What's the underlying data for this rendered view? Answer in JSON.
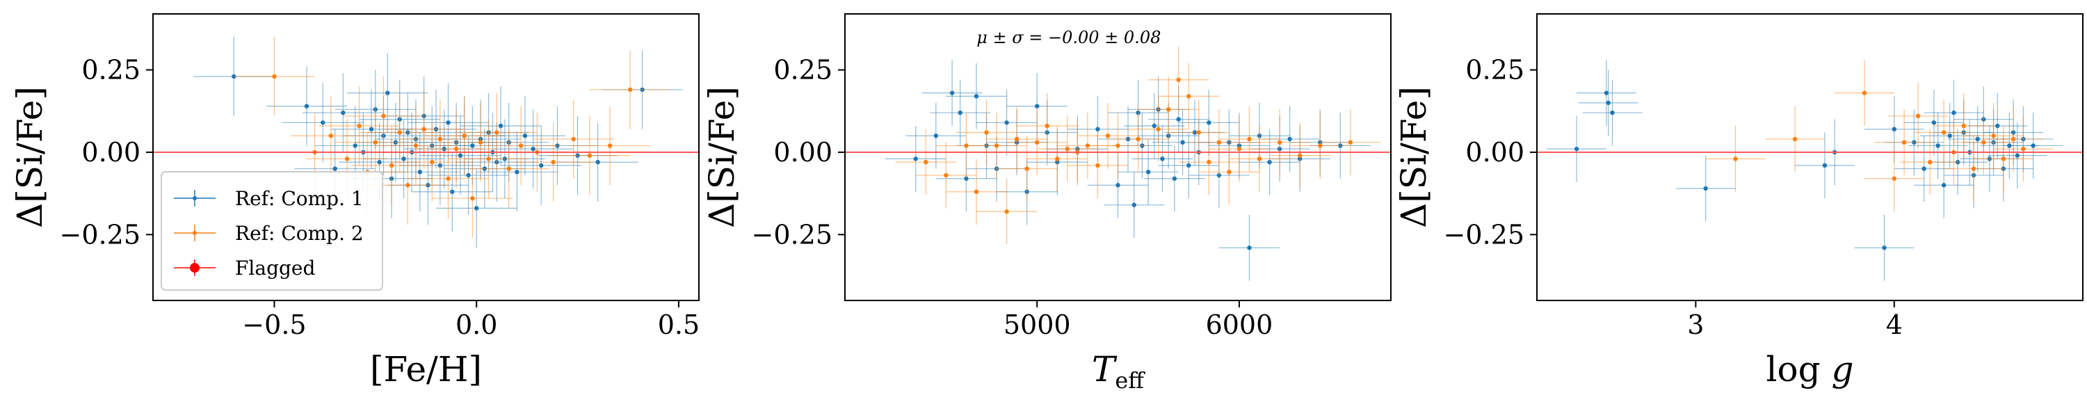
{
  "chart_data": [
    {
      "type": "scatter",
      "xlabel": "[Fe/H]",
      "ylabel": "Δ[Si/Fe]",
      "xlim": [
        -0.8,
        0.55
      ],
      "ylim": [
        -0.45,
        0.42
      ],
      "xticks": [
        -0.5,
        0.0,
        0.5
      ],
      "xtick_labels": [
        "−0.5",
        "0.0",
        "0.5"
      ],
      "yticks": [
        -0.25,
        0.0,
        0.25
      ],
      "ytick_labels": [
        "−0.25",
        "0.00",
        "0.25"
      ],
      "reference_line": 0.0,
      "legend": {
        "placement": "bottom-left",
        "entries": [
          "Ref: Comp. 1",
          "Ref: Comp. 2",
          "Flagged"
        ]
      },
      "series": [
        {
          "name": "Ref: Comp. 1",
          "color": "#1f77b4",
          "x": [
            -0.6,
            -0.42,
            -0.38,
            -0.35,
            -0.33,
            -0.3,
            -0.28,
            -0.26,
            -0.25,
            -0.24,
            -0.23,
            -0.22,
            -0.21,
            -0.2,
            -0.19,
            -0.18,
            -0.17,
            -0.16,
            -0.15,
            -0.14,
            -0.13,
            -0.12,
            -0.11,
            -0.1,
            -0.09,
            -0.08,
            -0.07,
            -0.06,
            -0.05,
            -0.04,
            -0.03,
            -0.02,
            -0.01,
            0.0,
            0.01,
            0.02,
            0.03,
            0.04,
            0.05,
            0.06,
            0.07,
            0.08,
            0.1,
            0.12,
            0.14,
            0.16,
            0.2,
            0.25,
            0.3,
            0.41
          ],
          "y": [
            0.23,
            0.14,
            0.09,
            -0.05,
            0.12,
            0.02,
            0.0,
            0.07,
            0.13,
            -0.03,
            0.05,
            0.18,
            -0.08,
            0.03,
            0.1,
            -0.02,
            0.06,
            0.0,
            0.04,
            -0.06,
            0.11,
            -0.1,
            0.02,
            0.07,
            -0.04,
            0.01,
            0.09,
            -0.12,
            0.03,
            -0.01,
            0.05,
            -0.07,
            0.02,
            -0.17,
            0.04,
            -0.05,
            0.06,
            0.0,
            -0.03,
            0.08,
            -0.02,
            0.03,
            -0.06,
            0.05,
            0.01,
            -0.04,
            0.02,
            -0.01,
            -0.03,
            0.19
          ],
          "xerr": 0.1,
          "yerr": 0.12
        },
        {
          "name": "Ref: Comp. 2",
          "color": "#ff7f0e",
          "x": [
            -0.5,
            -0.4,
            -0.36,
            -0.32,
            -0.29,
            -0.27,
            -0.25,
            -0.23,
            -0.21,
            -0.19,
            -0.17,
            -0.15,
            -0.13,
            -0.11,
            -0.09,
            -0.07,
            -0.05,
            -0.03,
            -0.01,
            0.01,
            0.03,
            0.05,
            0.08,
            0.11,
            0.15,
            0.19,
            0.24,
            0.28,
            0.33,
            0.38
          ],
          "y": [
            0.23,
            0.0,
            0.05,
            -0.02,
            0.08,
            -0.06,
            0.03,
            0.11,
            -0.04,
            0.06,
            -0.1,
            0.02,
            0.07,
            -0.03,
            0.04,
            -0.08,
            0.01,
            0.05,
            -0.14,
            0.03,
            -0.02,
            0.06,
            -0.05,
            0.02,
            0.0,
            -0.03,
            0.04,
            -0.01,
            0.02,
            0.19
          ],
          "xerr": 0.1,
          "yerr": 0.12
        }
      ]
    },
    {
      "type": "scatter",
      "xlabel": "T_eff",
      "ylabel": "Δ[Si/Fe]",
      "annotation": "μ ± σ = −0.00 ± 0.08",
      "xlim": [
        4050,
        6750
      ],
      "ylim": [
        -0.45,
        0.42
      ],
      "xticks": [
        5000,
        6000
      ],
      "xtick_labels": [
        "5000",
        "6000"
      ],
      "yticks": [
        -0.25,
        0.0,
        0.25
      ],
      "ytick_labels": [
        "−0.25",
        "0.00",
        "0.25"
      ],
      "reference_line": 0.0,
      "series": [
        {
          "name": "Ref: Comp. 1",
          "color": "#1f77b4",
          "x": [
            4400,
            4500,
            4580,
            4620,
            4650,
            4700,
            4750,
            4800,
            4850,
            4900,
            4950,
            5000,
            5050,
            5100,
            5200,
            5300,
            5400,
            5450,
            5480,
            5500,
            5520,
            5550,
            5580,
            5600,
            5620,
            5650,
            5680,
            5700,
            5720,
            5750,
            5780,
            5800,
            5850,
            5900,
            5950,
            6000,
            6050,
            6100,
            6150,
            6200,
            6250,
            6300,
            6400,
            6500
          ],
          "y": [
            -0.02,
            0.05,
            0.18,
            0.12,
            -0.08,
            0.17,
            0.02,
            -0.05,
            0.09,
            0.03,
            -0.12,
            0.14,
            0.06,
            -0.03,
            0.01,
            0.07,
            -0.1,
            0.04,
            -0.16,
            0.12,
            0.02,
            -0.06,
            0.08,
            0.13,
            -0.02,
            0.05,
            -0.08,
            0.1,
            0.03,
            -0.04,
            0.06,
            0.0,
            0.09,
            -0.07,
            0.03,
            0.02,
            -0.29,
            0.05,
            -0.03,
            0.01,
            0.04,
            -0.02,
            0.03,
            0.02
          ],
          "xerr": 150,
          "yerr": 0.1
        },
        {
          "name": "Ref: Comp. 2",
          "color": "#ff7f0e",
          "x": [
            4450,
            4550,
            4650,
            4700,
            4750,
            4800,
            4850,
            4900,
            4950,
            5000,
            5050,
            5100,
            5150,
            5200,
            5250,
            5300,
            5350,
            5400,
            5500,
            5600,
            5650,
            5700,
            5750,
            5800,
            5850,
            5900,
            5950,
            6000,
            6050,
            6100,
            6200,
            6300,
            6400,
            6550
          ],
          "y": [
            -0.03,
            -0.07,
            0.02,
            -0.12,
            0.06,
            0.02,
            -0.18,
            0.04,
            -0.05,
            0.03,
            0.08,
            -0.02,
            0.01,
            0.0,
            0.02,
            -0.04,
            0.05,
            0.02,
            0.04,
            0.07,
            0.13,
            0.22,
            0.17,
            0.06,
            -0.03,
            0.03,
            -0.06,
            0.01,
            0.04,
            -0.02,
            0.03,
            -0.01,
            0.02,
            0.03
          ],
          "xerr": 150,
          "yerr": 0.1
        }
      ]
    },
    {
      "type": "scatter",
      "xlabel": "log g",
      "ylabel": "Δ[Si/Fe]",
      "xlim": [
        2.2,
        4.95
      ],
      "ylim": [
        -0.45,
        0.42
      ],
      "xticks": [
        3,
        4
      ],
      "xtick_labels": [
        "3",
        "4"
      ],
      "yticks": [
        -0.25,
        0.0,
        0.25
      ],
      "ytick_labels": [
        "−0.25",
        "0.00",
        "0.25"
      ],
      "reference_line": 0.0,
      "series": [
        {
          "name": "Ref: Comp. 1",
          "color": "#1f77b4",
          "x": [
            2.55,
            2.56,
            2.58,
            2.4,
            3.05,
            3.65,
            3.7,
            3.95,
            4.0,
            4.1,
            4.15,
            4.2,
            4.22,
            4.25,
            4.28,
            4.3,
            4.32,
            4.35,
            4.38,
            4.4,
            4.42,
            4.45,
            4.48,
            4.5,
            4.52,
            4.55,
            4.58,
            4.6,
            4.62,
            4.65,
            4.7
          ],
          "y": [
            0.18,
            0.15,
            0.12,
            0.01,
            -0.11,
            -0.04,
            0.0,
            -0.29,
            0.07,
            0.03,
            -0.05,
            0.09,
            0.02,
            -0.1,
            0.05,
            0.12,
            -0.03,
            0.06,
            0.0,
            -0.07,
            0.04,
            0.1,
            -0.02,
            0.03,
            0.08,
            -0.05,
            0.02,
            0.06,
            -0.01,
            0.04,
            0.02
          ],
          "xerr": 0.15,
          "yerr": 0.1
        },
        {
          "name": "Ref: Comp. 2",
          "color": "#ff7f0e",
          "x": [
            3.2,
            3.5,
            3.85,
            4.0,
            4.05,
            4.12,
            4.18,
            4.25,
            4.3,
            4.35,
            4.4,
            4.45,
            4.5,
            4.55,
            4.6,
            4.65
          ],
          "y": [
            -0.02,
            0.04,
            0.18,
            -0.08,
            0.03,
            0.11,
            -0.03,
            0.06,
            0.0,
            0.08,
            -0.05,
            0.03,
            0.05,
            -0.02,
            0.04,
            0.01
          ],
          "xerr": 0.15,
          "yerr": 0.1
        }
      ]
    }
  ]
}
